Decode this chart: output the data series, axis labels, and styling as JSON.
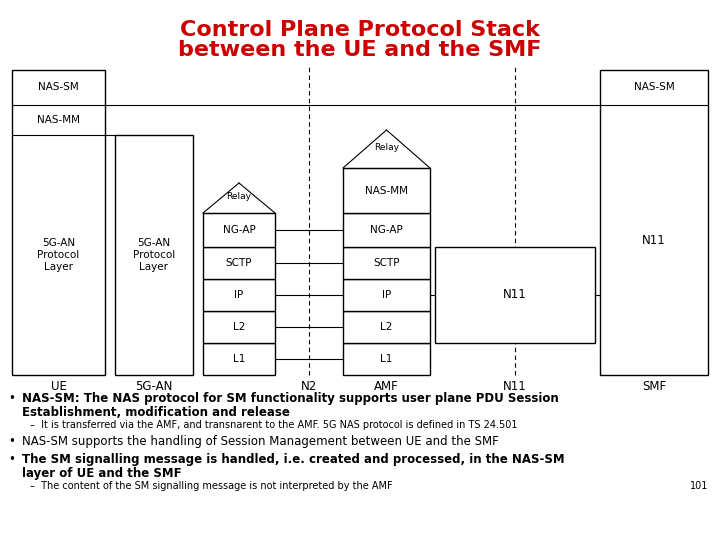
{
  "title_line1": "Control Plane Protocol Stack",
  "title_line2": "between the UE and the SMF",
  "title_color": "#cc0000",
  "title_fontsize": 16,
  "bg_color": "#ffffff",
  "page_num": "101"
}
